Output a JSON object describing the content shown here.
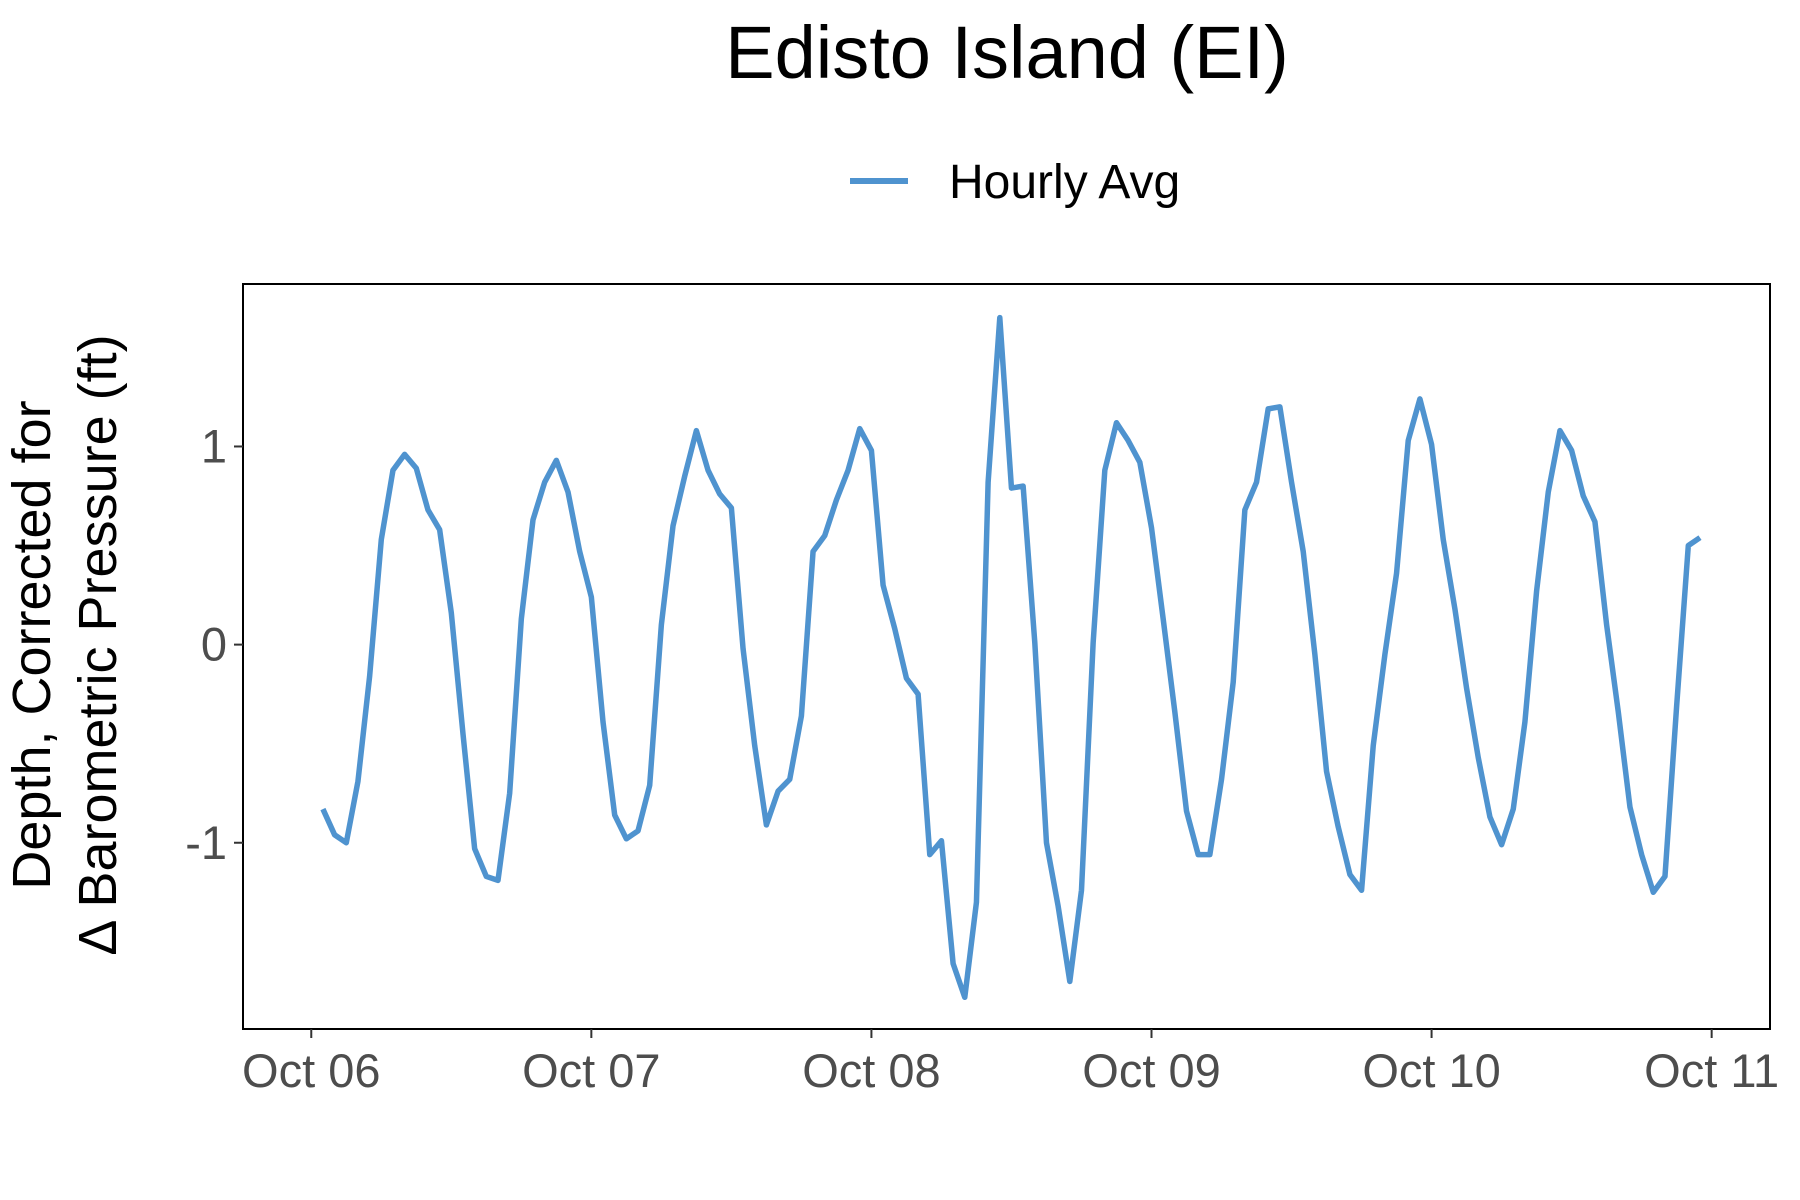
{
  "chart_data": {
    "type": "line",
    "title": "Edisto Island (EI)",
    "ylabel": [
      "Depth, Corrected for",
      "Δ Barometric Pressure (ft)"
    ],
    "legend": "top",
    "x": [
      1,
      2,
      3,
      4,
      5,
      6,
      7,
      8,
      9,
      10,
      11,
      12,
      13,
      14,
      15,
      16,
      17,
      18,
      19,
      20,
      21,
      22,
      23,
      24,
      25,
      26,
      27,
      28,
      29,
      30,
      31,
      32,
      33,
      34,
      35,
      36,
      37,
      38,
      39,
      40,
      41,
      42,
      43,
      44,
      45,
      46,
      47,
      48,
      49,
      50,
      51,
      52,
      53,
      54,
      55,
      56,
      57,
      58,
      59,
      60,
      61,
      62,
      63,
      64,
      65,
      66,
      67,
      68,
      69,
      70,
      71,
      72,
      73,
      74,
      75,
      76,
      77,
      78,
      79,
      80,
      81,
      82,
      83,
      84,
      85,
      86,
      87,
      88,
      89,
      90,
      91,
      92,
      93,
      94,
      95,
      96,
      97,
      98,
      99,
      100,
      101,
      102,
      103,
      104,
      105,
      106,
      107,
      108,
      109,
      110,
      111,
      112,
      113,
      114,
      115,
      116,
      117,
      118,
      119
    ],
    "series": [
      {
        "name": "Hourly Avg",
        "color": "#4f93cf",
        "values": [
          -0.83,
          -0.96,
          -1.0,
          -0.69,
          -0.16,
          0.53,
          0.88,
          0.96,
          0.89,
          0.68,
          0.58,
          0.16,
          -0.45,
          -1.03,
          -1.17,
          -1.19,
          -0.75,
          0.13,
          0.63,
          0.82,
          0.93,
          0.77,
          0.47,
          0.24,
          -0.39,
          -0.86,
          -0.98,
          -0.94,
          -0.71,
          0.1,
          0.6,
          0.85,
          1.08,
          0.88,
          0.76,
          0.69,
          -0.02,
          -0.51,
          -0.91,
          -0.74,
          -0.68,
          -0.36,
          0.47,
          0.55,
          0.73,
          0.88,
          1.09,
          0.98,
          0.3,
          0.08,
          -0.17,
          -0.25,
          -1.06,
          -0.99,
          -1.61,
          -1.78,
          -1.3,
          0.82,
          1.65,
          0.79,
          0.8,
          0.01,
          -1.0,
          -1.32,
          -1.7,
          -1.24,
          0.01,
          0.88,
          1.12,
          1.03,
          0.92,
          0.59,
          0.13,
          -0.34,
          -0.84,
          -1.06,
          -1.06,
          -0.68,
          -0.19,
          0.68,
          0.82,
          1.19,
          1.2,
          0.82,
          0.47,
          -0.05,
          -0.64,
          -0.92,
          -1.16,
          -1.24,
          -0.51,
          -0.05,
          0.36,
          1.03,
          1.24,
          1.01,
          0.53,
          0.18,
          -0.22,
          -0.57,
          -0.87,
          -1.01,
          -0.83,
          -0.39,
          0.27,
          0.77,
          1.08,
          0.98,
          0.75,
          0.62,
          0.1,
          -0.34,
          -0.82,
          -1.06,
          -1.25,
          -1.17,
          -0.31,
          0.5,
          0.54
        ]
      }
    ],
    "xlim": [
      -5.85,
      125
    ],
    "xticks": [
      {
        "value": 0,
        "label": "Oct 06"
      },
      {
        "value": 24,
        "label": "Oct 07"
      },
      {
        "value": 48,
        "label": "Oct 08"
      },
      {
        "value": 72,
        "label": "Oct 09"
      },
      {
        "value": 96,
        "label": "Oct 10"
      },
      {
        "value": 120,
        "label": "Oct 11"
      }
    ],
    "ylim": [
      -1.94,
      1.82
    ],
    "yticks": [
      -1,
      0,
      1
    ],
    "grid": false
  }
}
